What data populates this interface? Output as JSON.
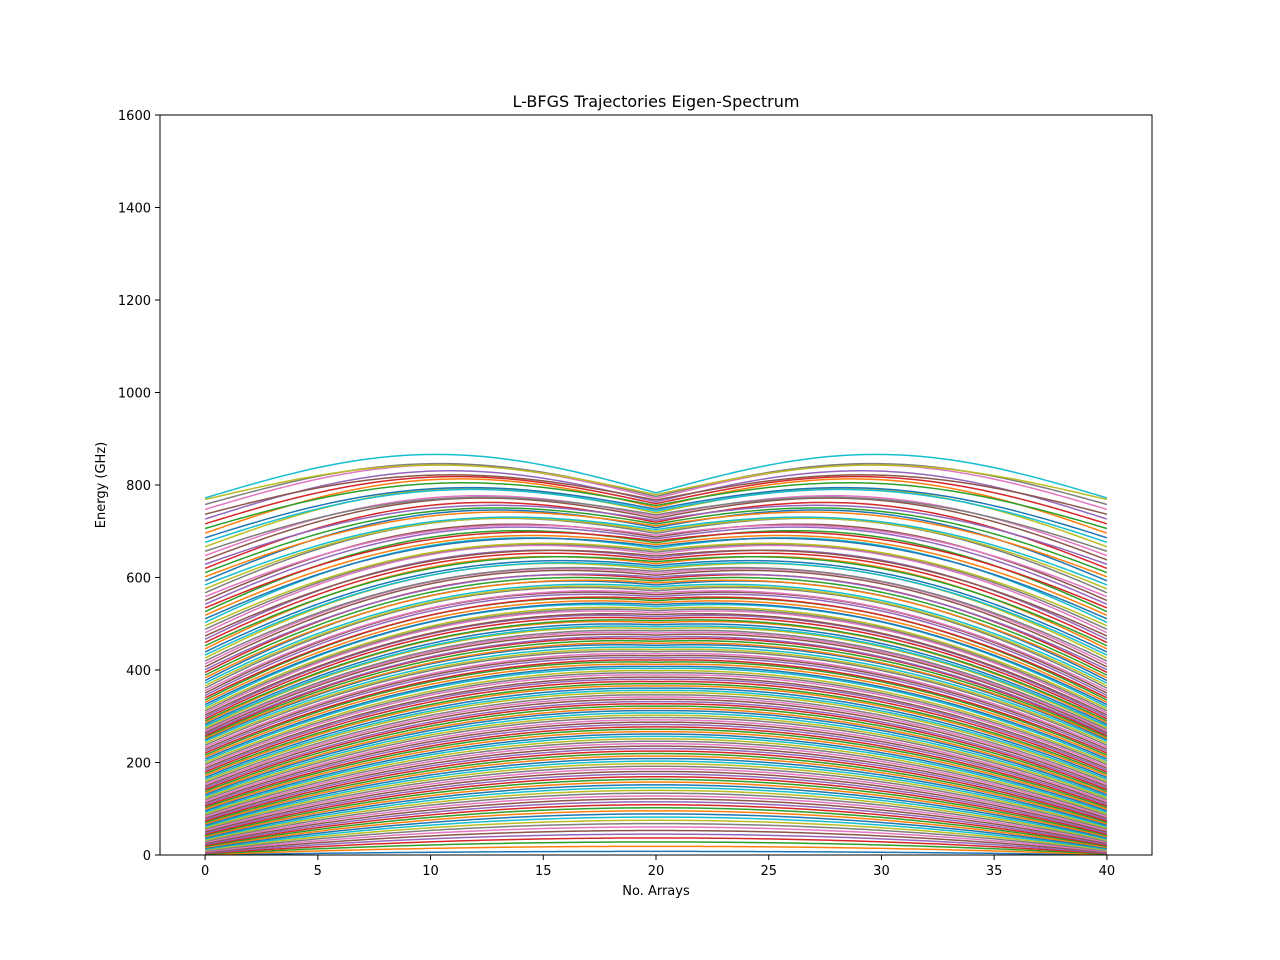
{
  "chart_data": {
    "type": "line",
    "title": "L-BFGS Trajectories Eigen-Spectrum",
    "xlabel": "No. Arrays",
    "ylabel": "Energy (GHz)",
    "xlim": [
      -2,
      42
    ],
    "ylim": [
      0,
      1600
    ],
    "xticks": [
      0,
      5,
      10,
      15,
      20,
      25,
      30,
      35,
      40
    ],
    "yticks": [
      0,
      200,
      400,
      600,
      800,
      1000,
      1200,
      1400,
      1600
    ],
    "grid": false,
    "legend": "none",
    "palette": [
      "#1f77b4",
      "#ff7f0e",
      "#2ca02c",
      "#d62728",
      "#9467bd",
      "#8c564b",
      "#e377c2",
      "#7f7f7f",
      "#bcbd22",
      "#17becf"
    ],
    "x_range": [
      0,
      40
    ],
    "series_count": 160,
    "line_family": {
      "endpoint_values_range": [
        0,
        785
      ],
      "value_at_x20_range": [
        0,
        772
      ],
      "max_value_near_x10_and_x30": 862
    }
  }
}
